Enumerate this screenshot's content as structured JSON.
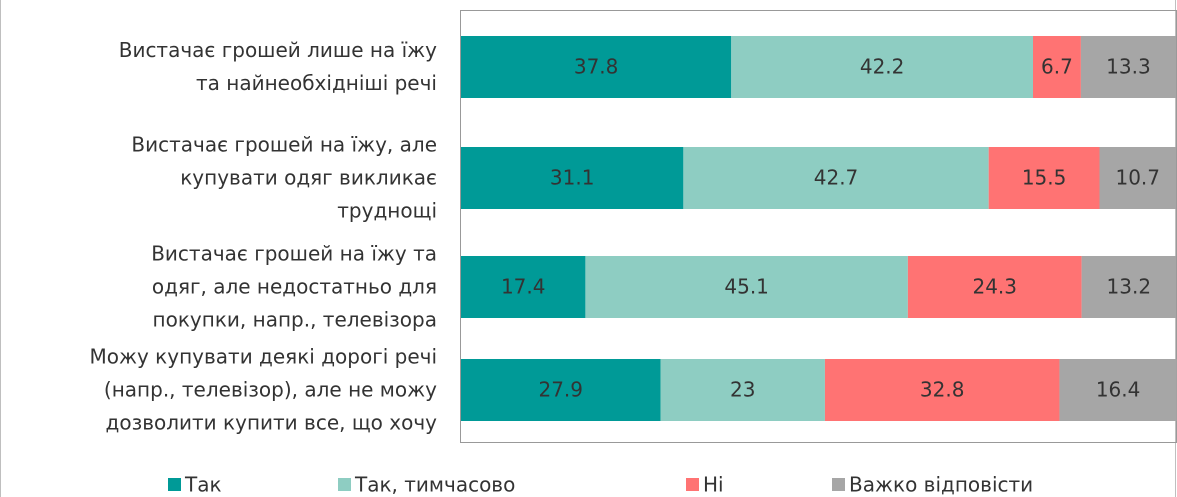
{
  "chart_data": {
    "type": "stacked-bar-horizontal",
    "categories": [
      "Вистачає грошей лише на їжу\nта найнеобхідніші речі",
      "Вистачає грошей на їжу, але\nкупувати одяг викликає\nтруднощі",
      "Вистачає грошей на їжу та\nодяг, але недостатньо для\nпокупки, напр., телевізора",
      "Можу купувати деякі дорогі речі\n(напр., телевізор), але не можу\nдозволити купити все, що хочу"
    ],
    "series": [
      {
        "name": "Так",
        "color": "#009a97",
        "values": [
          37.8,
          31.1,
          17.4,
          27.9
        ]
      },
      {
        "name": "Так, тимчасово",
        "color": "#8ecdc2",
        "values": [
          42.2,
          42.7,
          45.1,
          23
        ]
      },
      {
        "name": "Ні",
        "color": "#ff7373",
        "values": [
          6.7,
          15.5,
          24.3,
          32.8
        ]
      },
      {
        "name": "Важко відповісти",
        "color": "#a6a6a6",
        "values": [
          13.3,
          10.7,
          13.2,
          16.4
        ]
      }
    ],
    "xlim": [
      0,
      100
    ]
  }
}
